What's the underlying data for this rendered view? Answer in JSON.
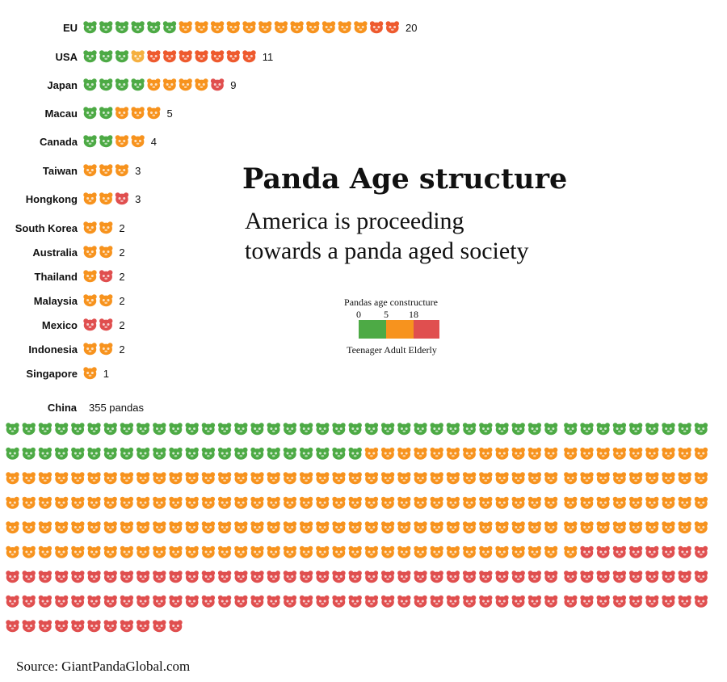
{
  "title": "Panda Age structure",
  "subtitle_lines": [
    "America is proceeding",
    "towards a panda aged society"
  ],
  "source": "Source: GiantPandaGlobal.com",
  "colors": {
    "teenager": "#4daa45",
    "adult": "#f7931e",
    "elderly": "#e04f4f",
    "highlight_adult": "#f5b041",
    "highlight_elderly": "#ee5a2e"
  },
  "legend": {
    "title": "Pandas age constructure",
    "ticks": [
      "0",
      "5",
      "18"
    ],
    "labels": "Teenager Adult Elderly"
  },
  "chart_data": {
    "type": "pictograph",
    "unit": "one icon = one panda",
    "categories_by_age": [
      "Teenager",
      "Adult",
      "Elderly"
    ],
    "age_thresholds": [
      0,
      5,
      18
    ],
    "rows": [
      {
        "country": "EU",
        "count": "20",
        "pandas": [
          "t",
          "t",
          "t",
          "t",
          "t",
          "t",
          "a",
          "a",
          "a",
          "a",
          "a",
          "a",
          "a",
          "a",
          "a",
          "a",
          "a",
          "a",
          "e2",
          "e2"
        ]
      },
      {
        "country": "USA",
        "count": "11",
        "pandas": [
          "t",
          "t",
          "t",
          "a2",
          "e2",
          "e2",
          "e2",
          "e2",
          "e2",
          "e2",
          "e2"
        ]
      },
      {
        "country": "Japan",
        "count": "9",
        "pandas": [
          "t",
          "t",
          "t",
          "t",
          "a",
          "a",
          "a",
          "a",
          "e"
        ]
      },
      {
        "country": "Macau",
        "count": "5",
        "pandas": [
          "t",
          "t",
          "a",
          "a",
          "a"
        ]
      },
      {
        "country": "Canada",
        "count": "4",
        "pandas": [
          "t",
          "t",
          "a",
          "a"
        ]
      },
      {
        "country": "Taiwan",
        "count": "3",
        "pandas": [
          "a",
          "a",
          "a"
        ]
      },
      {
        "country": "Hongkong",
        "count": "3",
        "pandas": [
          "a",
          "a",
          "e"
        ]
      },
      {
        "country": "South Korea",
        "count": "2",
        "pandas": [
          "a",
          "a"
        ]
      },
      {
        "country": "Australia",
        "count": "2",
        "pandas": [
          "a",
          "a"
        ]
      },
      {
        "country": "Thailand",
        "count": "2",
        "pandas": [
          "a",
          "e"
        ]
      },
      {
        "country": "Malaysia",
        "count": "2",
        "pandas": [
          "a",
          "a"
        ]
      },
      {
        "country": "Mexico",
        "count": "2",
        "pandas": [
          "e",
          "e"
        ]
      },
      {
        "country": "Indonesia",
        "count": "2",
        "pandas": [
          "a",
          "a"
        ]
      },
      {
        "country": "Singapore",
        "count": "1",
        "pandas": [
          "a"
        ]
      }
    ],
    "china": {
      "country": "China",
      "count_label": "355 pandas",
      "total": 355,
      "teenager": 65,
      "adult": 185,
      "elderly": 105
    }
  }
}
